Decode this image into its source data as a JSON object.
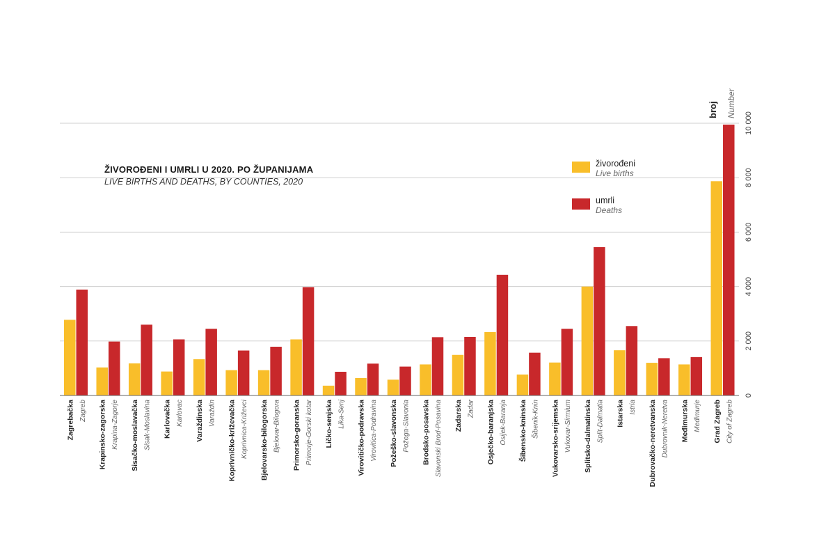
{
  "chart_data": {
    "type": "bar",
    "title": "ŽIVOROĐENI I UMRLI U 2020. PO ŽUPANIJAMA",
    "subtitle": "LIVE BIRTHS AND DEATHS, BY COUNTIES, 2020",
    "ylabel": "broj",
    "ylabel_en": "Number",
    "ylim": [
      0,
      10000
    ],
    "yticks": [
      0,
      2000,
      4000,
      6000,
      8000,
      10000
    ],
    "ytick_labels": [
      "0",
      "2 000",
      "4 000",
      "6 000",
      "8 000",
      "10 000"
    ],
    "legend_position": "top-right",
    "categories": [
      {
        "hr": "Zagrebačka",
        "en": "Zagreb"
      },
      {
        "hr": "Krapinsko-zagorska",
        "en": "Krapina-Zagorje"
      },
      {
        "hr": "Sisačko-moslavačka",
        "en": "Sisak-Moslavina"
      },
      {
        "hr": "Karlovačka",
        "en": "Karlovac"
      },
      {
        "hr": "Varaždinska",
        "en": "Varaždin"
      },
      {
        "hr": "Koprivničko-križevačka",
        "en": "Koprivnica-Križevci"
      },
      {
        "hr": "Bjelovarsko-bilogorska",
        "en": "Bjelovar-Bilogora"
      },
      {
        "hr": "Primorsko-goranska",
        "en": "Primorje-Gorski kotar"
      },
      {
        "hr": "Ličko-senjska",
        "en": "Lika-Senj"
      },
      {
        "hr": "Virovitičko-podravska",
        "en": "Virovitica-Podravina"
      },
      {
        "hr": "Požeško-slavonska",
        "en": "Požega-Slavonia"
      },
      {
        "hr": "Brodsko-posavska",
        "en": "Slavonski Brod-Posavina"
      },
      {
        "hr": "Zadarska",
        "en": "Zadar"
      },
      {
        "hr": "Osječko-baranjska",
        "en": "Osijek-Baranja"
      },
      {
        "hr": "Šibensko-kninska",
        "en": "Šibenik-Knin"
      },
      {
        "hr": "Vukovarsko-srijemska",
        "en": "Vukovar-Sirmium"
      },
      {
        "hr": "Splitsko-dalmatinska",
        "en": "Split-Dalmatia"
      },
      {
        "hr": "Istarska",
        "en": "Istria"
      },
      {
        "hr": "Dubrovačko-neretvanska",
        "en": "Dubrovnik-Neretva"
      },
      {
        "hr": "Međimurska",
        "en": "Međimurje"
      },
      {
        "hr": "Grad Zagreb",
        "en": "City of Zagreb"
      }
    ],
    "series": [
      {
        "name": "živorođeni",
        "name_en": "Live births",
        "color": "#f9be2a",
        "values": [
          2780,
          1030,
          1180,
          880,
          1330,
          930,
          930,
          2060,
          360,
          640,
          580,
          1140,
          1490,
          2330,
          770,
          1210,
          4000,
          1660,
          1200,
          1140,
          7870
        ]
      },
      {
        "name": "umrli",
        "name_en": "Deaths",
        "color": "#c8282b",
        "values": [
          3890,
          1980,
          2600,
          2060,
          2450,
          1650,
          1790,
          3980,
          870,
          1170,
          1060,
          2140,
          2150,
          4430,
          1570,
          2450,
          5450,
          2550,
          1370,
          1410,
          9950
        ]
      }
    ]
  }
}
